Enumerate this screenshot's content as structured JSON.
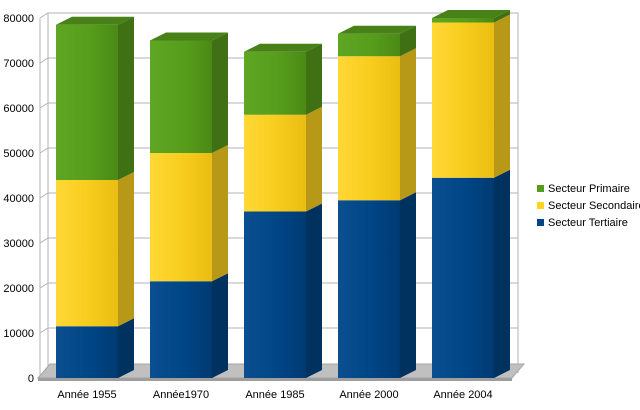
{
  "chart_data": {
    "type": "bar",
    "stacked": true,
    "three_d": true,
    "categories": [
      "Année 1955",
      "Année1970",
      "Année 1985",
      "Année 2000",
      "Année 2004"
    ],
    "series": [
      {
        "name": "Secteur Tertiaire",
        "values": [
          11500,
          21500,
          37000,
          39500,
          44500
        ],
        "color": "#004586"
      },
      {
        "name": "Secteur Secondaire",
        "values": [
          32500,
          28500,
          21500,
          32000,
          34500
        ],
        "color": "#ffd320"
      },
      {
        "name": "Secteur Primaire",
        "values": [
          34500,
          25000,
          14000,
          5000,
          1000
        ],
        "color": "#579d1c"
      }
    ],
    "legend_order": [
      "Secteur Primaire",
      "Secteur Secondaire",
      "Secteur Tertiaire"
    ],
    "ylim": [
      0,
      80000
    ],
    "yticks": [
      0,
      10000,
      20000,
      30000,
      40000,
      50000,
      60000,
      70000,
      80000
    ],
    "grid": true,
    "legend_position": "right",
    "title": "",
    "xlabel": "",
    "ylabel": ""
  }
}
